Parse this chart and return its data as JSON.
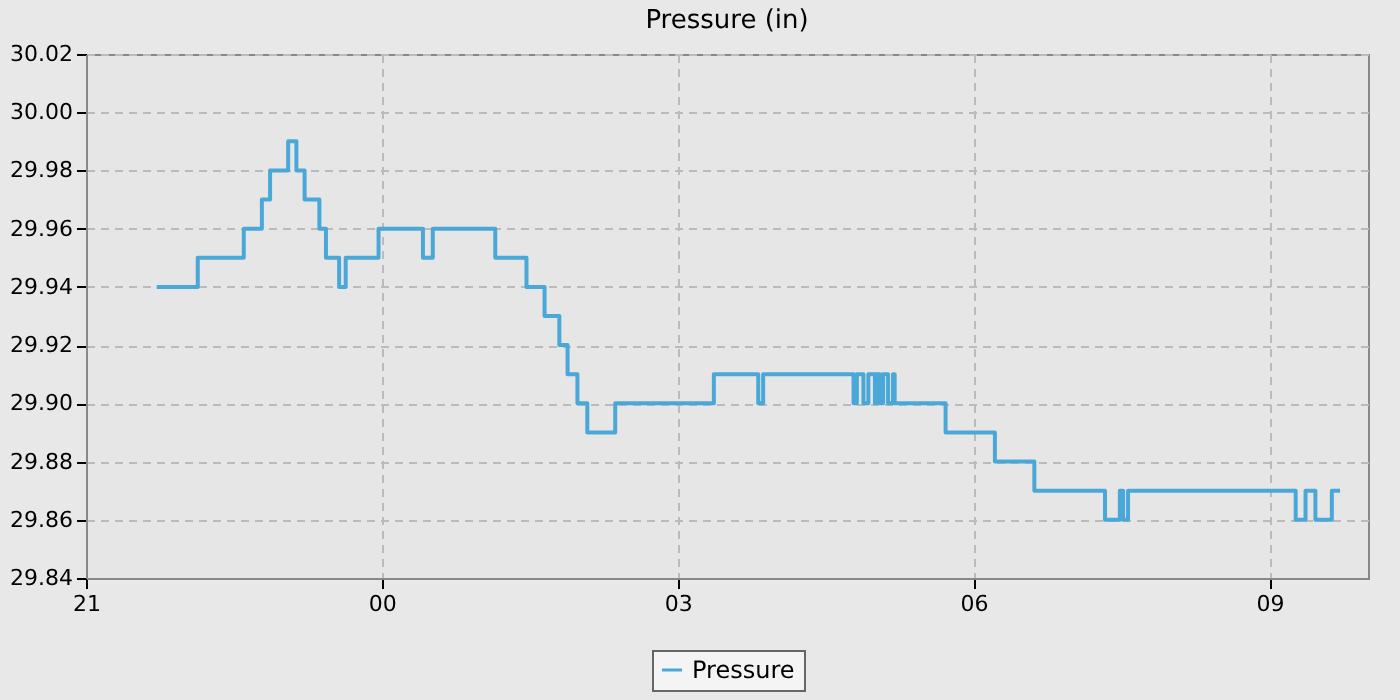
{
  "chart_data": {
    "type": "step",
    "title": "Pressure (in)",
    "xlim": [
      "--01-01T21:00",
      "--01-02T10:00"
    ],
    "xticks": [
      {
        "value": "--01-01T21:00",
        "label": "21"
      },
      {
        "value": "--01-02T00:00",
        "label": "00"
      },
      {
        "value": "--01-02T03:00",
        "label": "03"
      },
      {
        "value": "--01-02T06:00",
        "label": "06"
      },
      {
        "value": "--01-02T09:00",
        "label": "09"
      }
    ],
    "ylim": [
      29.84,
      30.02
    ],
    "yticks": [
      {
        "value": 29.84,
        "label": "29.84"
      },
      {
        "value": 29.86,
        "label": "29.86"
      },
      {
        "value": 29.88,
        "label": "29.88"
      },
      {
        "value": 29.9,
        "label": "29.90"
      },
      {
        "value": 29.92,
        "label": "29.92"
      },
      {
        "value": 29.94,
        "label": "29.94"
      },
      {
        "value": 29.96,
        "label": "29.96"
      },
      {
        "value": 29.98,
        "label": "29.98"
      },
      {
        "value": 30.0,
        "label": "30.00"
      },
      {
        "value": 30.02,
        "label": "30.02"
      }
    ],
    "grid": true,
    "legend": "bottom",
    "marker": "none",
    "line_style": "solid",
    "series": [
      {
        "name": "Pressure",
        "color": "#4aa8d8",
        "x": [
          "--01-01T21:43",
          "--01-01T22:08",
          "--01-01T22:36",
          "--01-01T22:47",
          "--01-01T22:52",
          "--01-01T23:03",
          "--01-01T23:08",
          "--01-01T23:13",
          "--01-01T23:22",
          "--01-01T23:26",
          "--01-01T23:34",
          "--01-01T23:38",
          "--01-01T23:58",
          "--01-02T00:25",
          "--01-02T00:31",
          "--01-02T01:09",
          "--01-02T01:28",
          "--01-02T01:39",
          "--01-02T01:48",
          "--01-02T01:53",
          "--01-02T01:59",
          "--01-02T02:05",
          "--01-02T02:22",
          "--01-02T03:22",
          "--01-02T03:49",
          "--01-02T03:52",
          "--01-02T04:47",
          "--01-02T04:49",
          "--01-02T04:53",
          "--01-02T04:56",
          "--01-02T05:00",
          "--01-02T05:01",
          "--01-02T05:03",
          "--01-02T05:05",
          "--01-02T05:08",
          "--01-02T05:11",
          "--01-02T05:12",
          "--01-02T05:43",
          "--01-02T06:13",
          "--01-02T06:37",
          "--01-02T07:20",
          "--01-02T07:29",
          "--01-02T07:31",
          "--01-02T07:34",
          "--01-02T09:16",
          "--01-02T09:22",
          "--01-02T09:28",
          "--01-02T09:38",
          "--01-02T09:43"
        ],
        "values": [
          29.94,
          29.95,
          29.96,
          29.97,
          29.98,
          29.99,
          29.98,
          29.97,
          29.96,
          29.95,
          29.94,
          29.95,
          29.96,
          29.95,
          29.96,
          29.95,
          29.94,
          29.93,
          29.92,
          29.91,
          29.9,
          29.89,
          29.9,
          29.91,
          29.9,
          29.91,
          29.9,
          29.91,
          29.9,
          29.91,
          29.9,
          29.91,
          29.9,
          29.91,
          29.9,
          29.91,
          29.9,
          29.89,
          29.88,
          29.87,
          29.86,
          29.87,
          29.86,
          29.87,
          29.86,
          29.87,
          29.86,
          29.87,
          29.87
        ]
      }
    ]
  }
}
